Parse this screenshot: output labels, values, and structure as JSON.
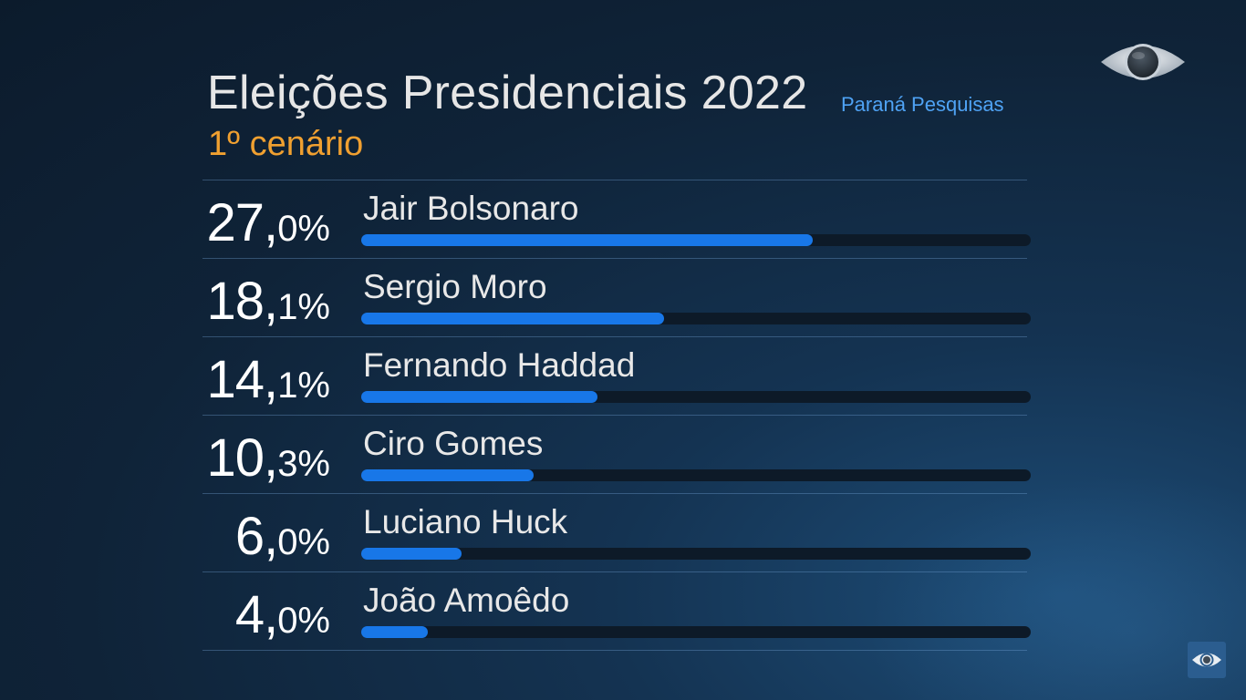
{
  "header": {
    "title": "Eleições Presidenciais 2022",
    "subtitle": "1º cenário",
    "source": "Paraná Pesquisas"
  },
  "colors": {
    "bar": "#1877e8",
    "track": "#0d1a28",
    "subtitle": "#f0a030",
    "source": "#4fa3f5"
  },
  "icons": {
    "top_logo": "broadcaster-eye-logo",
    "corner_logo": "broadcaster-eye-logo-small"
  },
  "chart_data": {
    "type": "bar",
    "orientation": "horizontal",
    "title": "Eleições Presidenciais 2022",
    "subtitle": "1º cenário",
    "source": "Paraná Pesquisas",
    "categories": [
      "Jair Bolsonaro",
      "Sergio Moro",
      "Fernando Haddad",
      "Ciro Gomes",
      "Luciano Huck",
      "João Amoêdo"
    ],
    "values": [
      27.0,
      18.1,
      14.1,
      10.3,
      6.0,
      4.0
    ],
    "labels": [
      {
        "int": "27,",
        "dec": "0%"
      },
      {
        "int": "18,",
        "dec": "1%"
      },
      {
        "int": "14,",
        "dec": "1%"
      },
      {
        "int": "10,",
        "dec": "3%"
      },
      {
        "int": "6,",
        "dec": "0%"
      },
      {
        "int": "4,",
        "dec": "0%"
      }
    ],
    "xlim": [
      0,
      40
    ],
    "unit": "%"
  }
}
